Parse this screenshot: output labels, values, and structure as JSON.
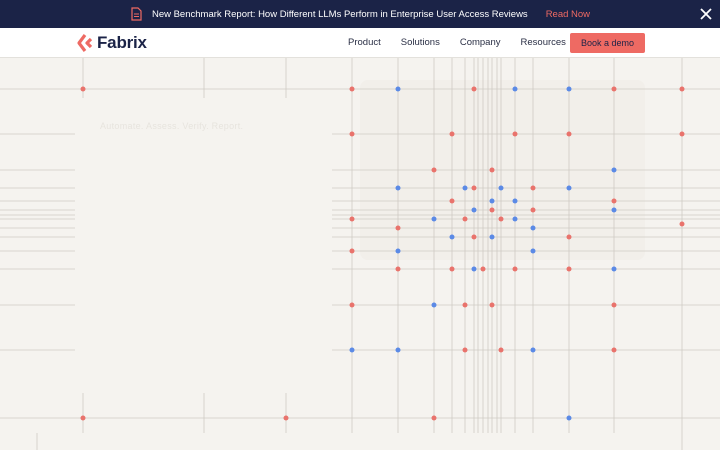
{
  "announcement": {
    "text": "New Benchmark Report: How Different LLMs Perform in Enterprise User Access Reviews",
    "cta": "Read Now",
    "icon": "document-icon",
    "close_icon": "close-icon"
  },
  "brand": {
    "name": "Fabrix",
    "logo_icon": "fabrix-logo-icon",
    "color": "#ee6a63"
  },
  "nav": {
    "items": [
      "Product",
      "Solutions",
      "Company",
      "Resources"
    ],
    "cta": "Book a demo"
  },
  "hero": {
    "eyebrow": "Automate. Assess. Verify. Report."
  },
  "colors": {
    "banner": "#1b2347",
    "accent": "#ee6a63",
    "dot_red": "#e9736c",
    "dot_blue": "#5b8ae6",
    "background": "#f5f3ef"
  }
}
